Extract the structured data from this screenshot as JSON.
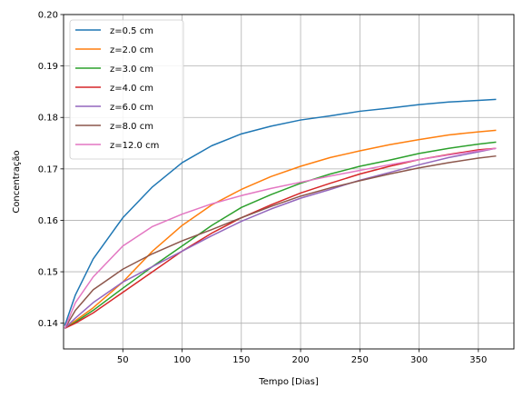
{
  "chart_data": {
    "type": "line",
    "title": "",
    "xlabel": "Tempo [Dias]",
    "ylabel": "Concentração",
    "xlim": [
      0,
      380
    ],
    "ylim": [
      0.135,
      0.2
    ],
    "xticks": [
      50,
      100,
      150,
      200,
      250,
      300,
      350
    ],
    "yticks": [
      0.14,
      0.15,
      0.16,
      0.17,
      0.18,
      0.19,
      0.2
    ],
    "xtick_labels": [
      "50",
      "100",
      "150",
      "200",
      "250",
      "300",
      "350"
    ],
    "ytick_labels": [
      "0.14",
      "0.15",
      "0.16",
      "0.17",
      "0.18",
      "0.19",
      "0.20"
    ],
    "grid": true,
    "legend_position": "top-left",
    "x": [
      1,
      10,
      25,
      50,
      75,
      100,
      125,
      150,
      175,
      200,
      225,
      250,
      275,
      300,
      325,
      350,
      365
    ],
    "series": [
      {
        "name": "z=0.5 cm",
        "color": "#1f77b4",
        "values": [
          0.1395,
          0.1455,
          0.1525,
          0.1605,
          0.1665,
          0.1712,
          0.1745,
          0.1768,
          0.1783,
          0.1795,
          0.1803,
          0.1812,
          0.1818,
          0.1825,
          0.183,
          0.1833,
          0.1835
        ]
      },
      {
        "name": "z=2.0 cm",
        "color": "#ff7f0e",
        "values": [
          0.139,
          0.1405,
          0.143,
          0.148,
          0.154,
          0.159,
          0.163,
          0.166,
          0.1685,
          0.1705,
          0.1722,
          0.1735,
          0.1747,
          0.1757,
          0.1766,
          0.1772,
          0.1775
        ]
      },
      {
        "name": "z=3.0 cm",
        "color": "#2ca02c",
        "values": [
          0.139,
          0.1402,
          0.1425,
          0.1468,
          0.151,
          0.155,
          0.159,
          0.1625,
          0.165,
          0.1672,
          0.169,
          0.1705,
          0.1717,
          0.173,
          0.174,
          0.1748,
          0.1752
        ]
      },
      {
        "name": "z=4.0 cm",
        "color": "#d62728",
        "values": [
          0.139,
          0.14,
          0.142,
          0.146,
          0.15,
          0.154,
          0.1575,
          0.1605,
          0.163,
          0.1653,
          0.1672,
          0.169,
          0.1705,
          0.1718,
          0.1728,
          0.1737,
          0.174
        ]
      },
      {
        "name": "z=6.0 cm",
        "color": "#9467bd",
        "values": [
          0.139,
          0.141,
          0.144,
          0.148,
          0.151,
          0.154,
          0.157,
          0.1598,
          0.1622,
          0.1643,
          0.166,
          0.1678,
          0.1693,
          0.1708,
          0.1722,
          0.1733,
          0.174
        ]
      },
      {
        "name": "z=8.0 cm",
        "color": "#8c564b",
        "values": [
          0.139,
          0.1425,
          0.1465,
          0.1505,
          0.1535,
          0.156,
          0.1582,
          0.1605,
          0.1627,
          0.1647,
          0.1663,
          0.1677,
          0.169,
          0.1702,
          0.1712,
          0.1721,
          0.1725
        ]
      },
      {
        "name": "z=12.0 cm",
        "color": "#e377c2",
        "values": [
          0.139,
          0.144,
          0.149,
          0.155,
          0.1588,
          0.1612,
          0.1632,
          0.1648,
          0.1662,
          0.1674,
          0.1686,
          0.1697,
          0.1708,
          0.1718,
          0.1727,
          0.1735,
          0.174
        ]
      }
    ]
  }
}
